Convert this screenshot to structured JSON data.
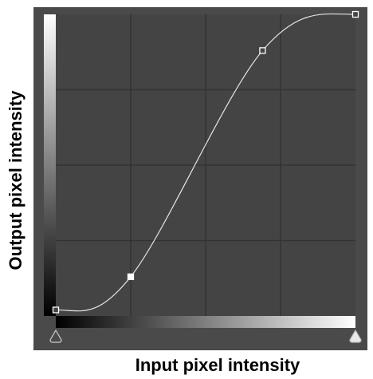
{
  "axes": {
    "x_label": "Input pixel intensity",
    "y_label": "Output pixel intensity"
  },
  "curve": {
    "control_points": [
      {
        "input": 0.0,
        "output": 0.02
      },
      {
        "input": 0.25,
        "output": 0.13
      },
      {
        "input": 0.69,
        "output": 0.88
      },
      {
        "input": 1.0,
        "output": 1.0
      }
    ],
    "selected_point_index": 1
  },
  "colors": {
    "panel_background": "#4a4a4a",
    "plot_background": "#444444",
    "grid_line": "#333333",
    "curve": "#e6e6e6",
    "point_fill": "#ffffff",
    "point_stroke": "#ffffff"
  },
  "sliders": {
    "black_point": 0.0,
    "white_point": 1.0
  }
}
